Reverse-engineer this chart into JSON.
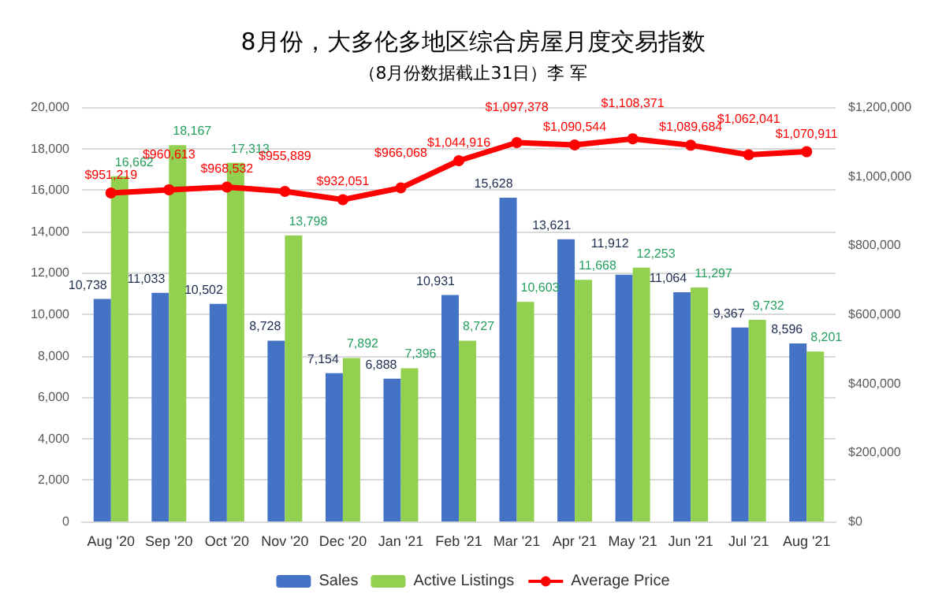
{
  "chart_data": {
    "type": "bar",
    "title": "8月份，大多伦多地区综合房屋月度交易指数",
    "subtitle": "（8月份数据截止31日）李 军",
    "categories": [
      "Aug '20",
      "Sep '20",
      "Oct '20",
      "Nov '20",
      "Dec '20",
      "Jan '21",
      "Feb '21",
      "Mar '21",
      "Apr '21",
      "May '21",
      "Jun '21",
      "Jul '21",
      "Aug '21"
    ],
    "series": [
      {
        "name": "Sales",
        "color": "#4472c4",
        "values": [
          10738,
          11033,
          10502,
          8728,
          7154,
          6888,
          10931,
          15628,
          13621,
          11912,
          11064,
          9367,
          8596
        ],
        "value_labels": [
          "10,738",
          "11,033",
          "10,502",
          "8,728",
          "7,154",
          "6,888",
          "10,931",
          "15,628",
          "13,621",
          "11,912",
          "11,064",
          "9,367",
          "8,596"
        ]
      },
      {
        "name": "Active Listings",
        "color": "#92d050",
        "values": [
          16662,
          18167,
          17313,
          13798,
          7892,
          7396,
          8727,
          10603,
          11668,
          12253,
          11297,
          9732,
          8201
        ],
        "value_labels": [
          "16,662",
          "18,167",
          "17,313",
          "13,798",
          "7,892",
          "7,396",
          "8,727",
          "10,603",
          "11,668",
          "12,253",
          "11,297",
          "9,732",
          "8,201"
        ]
      },
      {
        "name": "Average Price",
        "type": "line",
        "axis": "y2",
        "color": "#ff0000",
        "values": [
          951219,
          960613,
          968532,
          955889,
          932051,
          966068,
          1044916,
          1097378,
          1090544,
          1108371,
          1089684,
          1062041,
          1070911
        ],
        "value_labels": [
          "$951,219",
          "$960,613",
          "$968,532",
          "$955,889",
          "$932,051",
          "$966,068",
          "$1,044,916",
          "$1,097,378",
          "$1,090,544",
          "$1,108,371",
          "$1,089,684",
          "$1,062,041",
          "$1,070,911"
        ]
      }
    ],
    "ylim": [
      0,
      20000
    ],
    "yticks": [
      {
        "value": 0,
        "label": "0"
      },
      {
        "value": 2000,
        "label": "2,000"
      },
      {
        "value": 4000,
        "label": "4,000"
      },
      {
        "value": 6000,
        "label": "6,000"
      },
      {
        "value": 8000,
        "label": "8,000"
      },
      {
        "value": 10000,
        "label": "10,000"
      },
      {
        "value": 12000,
        "label": "12,000"
      },
      {
        "value": 14000,
        "label": "14,000"
      },
      {
        "value": 16000,
        "label": "16,000"
      },
      {
        "value": 18000,
        "label": "18,000"
      },
      {
        "value": 20000,
        "label": "20,000"
      }
    ],
    "y2lim": [
      0,
      1200000
    ],
    "y2ticks": [
      {
        "value": 0,
        "label": "$0"
      },
      {
        "value": 200000,
        "label": "$200,000"
      },
      {
        "value": 400000,
        "label": "$400,000"
      },
      {
        "value": 600000,
        "label": "$600,000"
      },
      {
        "value": 800000,
        "label": "$800,000"
      },
      {
        "value": 1000000,
        "label": "$1,000,000"
      },
      {
        "value": 1200000,
        "label": "$1,200,000"
      }
    ],
    "grid": "y",
    "legend": "bottom",
    "marker": "circle",
    "line_style": "solid"
  }
}
